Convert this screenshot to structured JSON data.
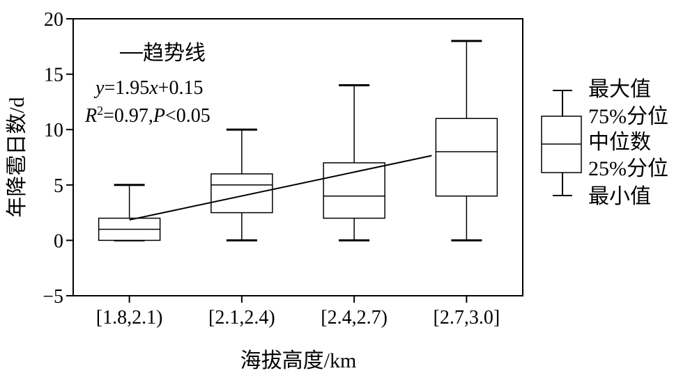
{
  "chart_data": {
    "type": "box",
    "xlabel": "海拔高度/km",
    "ylabel": "年降雹日数/d",
    "ylim": [
      -5,
      20
    ],
    "yticks": [
      "−5",
      "0",
      "5",
      "10",
      "15",
      "20"
    ],
    "categories": [
      "[1.8,2.1)",
      "[2.1,2.4)",
      "[2.4,2.7)",
      "[2.7,3.0]"
    ],
    "boxes": [
      {
        "min": 0,
        "q1": 0,
        "median": 1,
        "q3": 2,
        "max": 5
      },
      {
        "min": 0,
        "q1": 2.5,
        "median": 5,
        "q3": 6,
        "max": 10
      },
      {
        "min": 0,
        "q1": 2,
        "median": 4,
        "q3": 7,
        "max": 14
      },
      {
        "min": 0,
        "q1": 4,
        "median": 8,
        "q3": 11,
        "max": 18
      }
    ],
    "trendline": {
      "label": "—趋势线",
      "equation_y": "y",
      "equation_rest": "=1.95",
      "equation_x": "x",
      "equation_tail": "+0.15",
      "stats_R": "R",
      "stats_sup": "2",
      "stats_mid": "=0.97,",
      "stats_P": "P",
      "stats_tail": "<0.05",
      "start_y": 1.85,
      "end_y": 7.65
    },
    "legend": {
      "items": [
        "最大值",
        "75%分位",
        "中位数",
        "25%分位",
        "最小值"
      ]
    }
  }
}
